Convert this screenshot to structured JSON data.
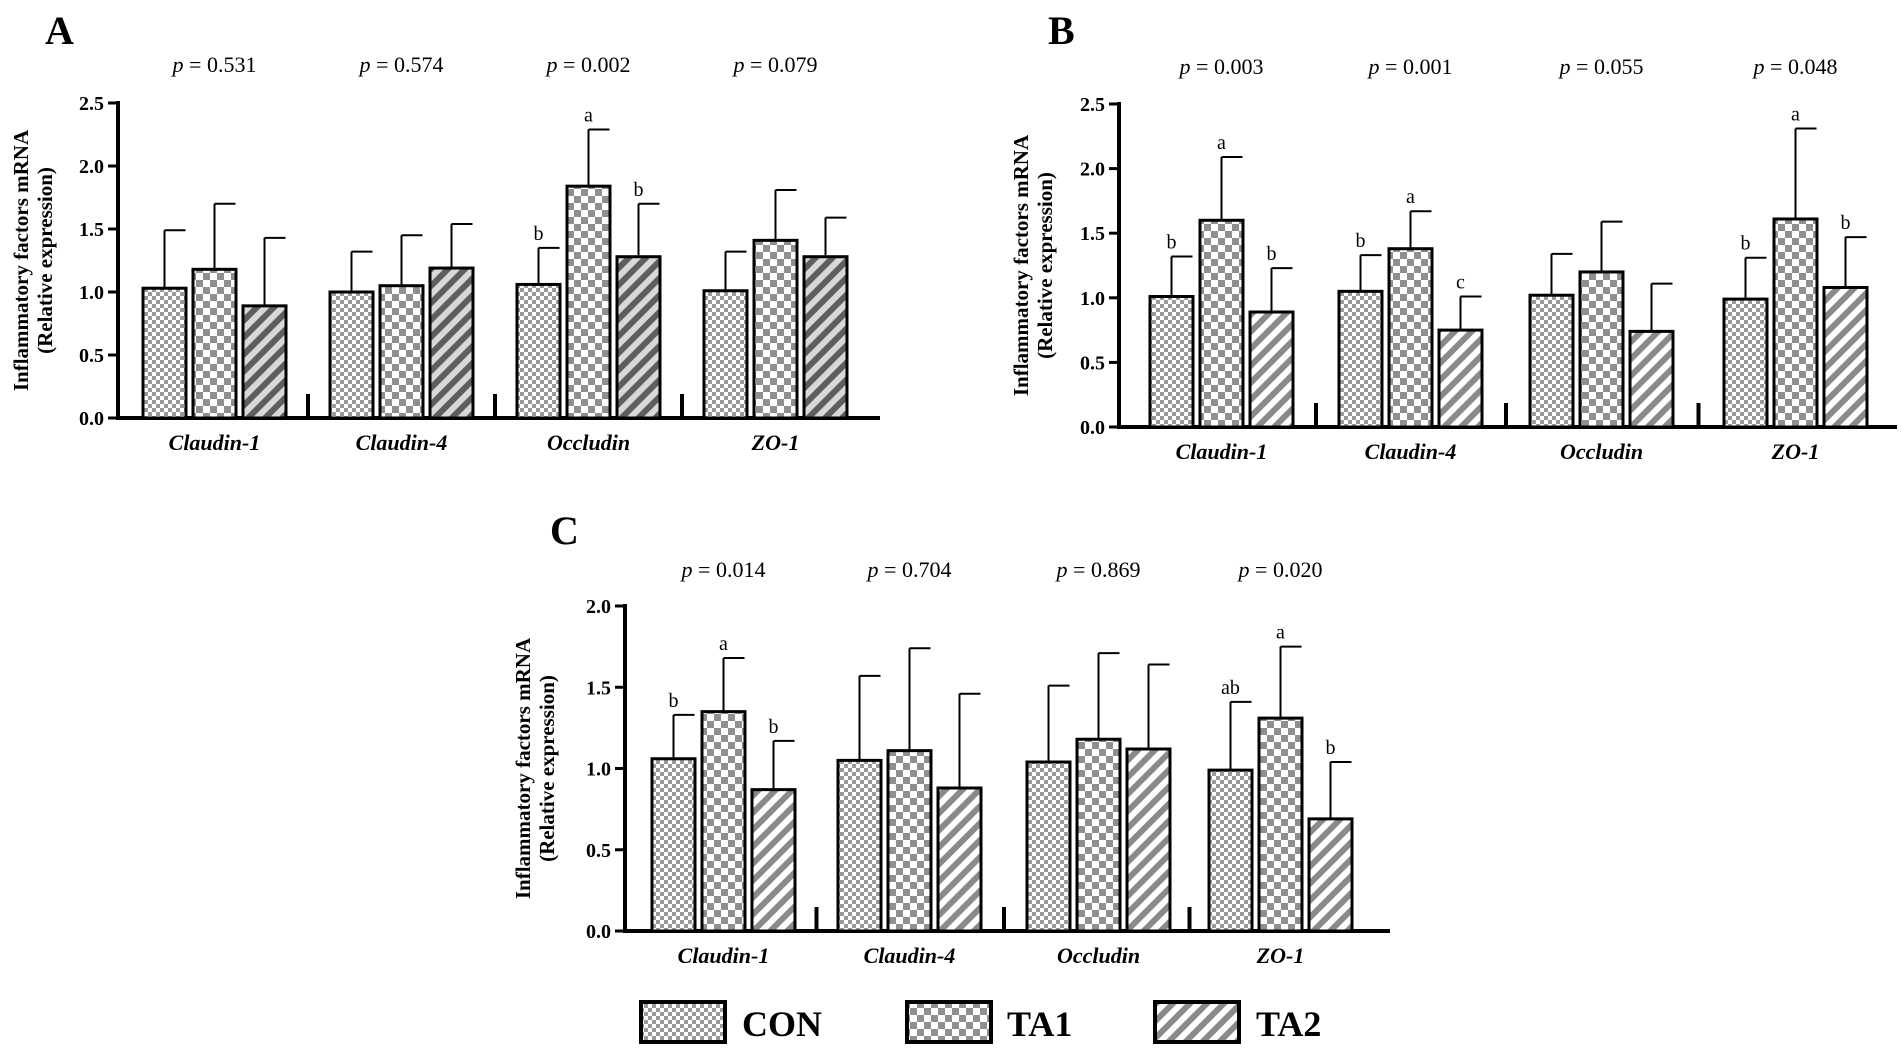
{
  "figure": {
    "legend": [
      {
        "label": "CON",
        "pattern": "fine"
      },
      {
        "label": "TA1",
        "pattern": "coarse"
      },
      {
        "label": "TA2",
        "pattern": "stripe"
      }
    ]
  },
  "chart_data": [
    {
      "panel": "A",
      "type": "bar",
      "ylabel_line1": "Inflammatory factors mRNA",
      "ylabel_line2": "(Relative expression)",
      "ylim": [
        0,
        2.5
      ],
      "yticks": [
        "0.0",
        "0.5",
        "1.0",
        "1.5",
        "2.0",
        "2.5"
      ],
      "categories": [
        "Claudin-1",
        "Claudin-4",
        "Occludin",
        "ZO-1"
      ],
      "pvalues": [
        "= 0.531",
        "= 0.574",
        "= 0.002",
        "= 0.079"
      ],
      "p_symbol": "p",
      "series": [
        {
          "name": "CON",
          "values": [
            1.03,
            1.0,
            1.06,
            1.01
          ],
          "errors": [
            0.46,
            0.32,
            0.29,
            0.31
          ],
          "letters": [
            "",
            "",
            "b",
            ""
          ]
        },
        {
          "name": "TA1",
          "values": [
            1.18,
            1.05,
            1.84,
            1.41
          ],
          "errors": [
            0.52,
            0.4,
            0.45,
            0.4
          ],
          "letters": [
            "",
            "",
            "a",
            ""
          ]
        },
        {
          "name": "TA2",
          "values": [
            0.89,
            1.19,
            1.28,
            1.28
          ],
          "errors": [
            0.54,
            0.35,
            0.42,
            0.31
          ],
          "letters": [
            "",
            "",
            "b",
            ""
          ]
        }
      ]
    },
    {
      "panel": "B",
      "type": "bar",
      "ylabel_line1": "Inflammatory factors mRNA",
      "ylabel_line2": "(Relative expression)",
      "ylim": [
        0,
        2.5
      ],
      "yticks": [
        "0.0",
        "0.5",
        "1.0",
        "1.5",
        "2.0",
        "2.5"
      ],
      "categories": [
        "Claudin-1",
        "Claudin-4",
        "Occludin",
        "ZO-1"
      ],
      "pvalues": [
        "= 0.003",
        "= 0.001",
        "= 0.055",
        "= 0.048"
      ],
      "p_symbol": "p",
      "series": [
        {
          "name": "CON",
          "values": [
            1.01,
            1.05,
            1.02,
            0.99
          ],
          "errors": [
            0.31,
            0.28,
            0.32,
            0.32
          ],
          "letters": [
            "b",
            "b",
            "",
            "b"
          ]
        },
        {
          "name": "TA1",
          "values": [
            1.6,
            1.38,
            1.2,
            1.61
          ],
          "errors": [
            0.49,
            0.29,
            0.39,
            0.7
          ],
          "letters": [
            "a",
            "a",
            "",
            "a"
          ]
        },
        {
          "name": "TA2",
          "values": [
            0.89,
            0.75,
            0.74,
            1.08
          ],
          "errors": [
            0.34,
            0.26,
            0.37,
            0.39
          ],
          "letters": [
            "b",
            "c",
            "",
            "b"
          ]
        }
      ]
    },
    {
      "panel": "C",
      "type": "bar",
      "ylabel_line1": "Inflammatory factors mRNA",
      "ylabel_line2": "(Relative expression)",
      "ylim": [
        0,
        2.0
      ],
      "yticks": [
        "0.0",
        "0.5",
        "1.0",
        "1.5",
        "2.0"
      ],
      "categories": [
        "Claudin-1",
        "Claudin-4",
        "Occludin",
        "ZO-1"
      ],
      "pvalues": [
        "= 0.014",
        "= 0.704",
        "= 0.869",
        "= 0.020"
      ],
      "p_symbol": "p",
      "series": [
        {
          "name": "CON",
          "values": [
            1.06,
            1.05,
            1.04,
            0.99
          ],
          "errors": [
            0.27,
            0.52,
            0.47,
            0.42
          ],
          "letters": [
            "b",
            "",
            "",
            "ab"
          ]
        },
        {
          "name": "TA1",
          "values": [
            1.35,
            1.11,
            1.18,
            1.31
          ],
          "errors": [
            0.33,
            0.63,
            0.53,
            0.44
          ],
          "letters": [
            "a",
            "",
            "",
            "a"
          ]
        },
        {
          "name": "TA2",
          "values": [
            0.87,
            0.88,
            1.12,
            0.69
          ],
          "errors": [
            0.3,
            0.58,
            0.52,
            0.35
          ],
          "letters": [
            "b",
            "",
            "",
            "b"
          ]
        }
      ]
    }
  ]
}
